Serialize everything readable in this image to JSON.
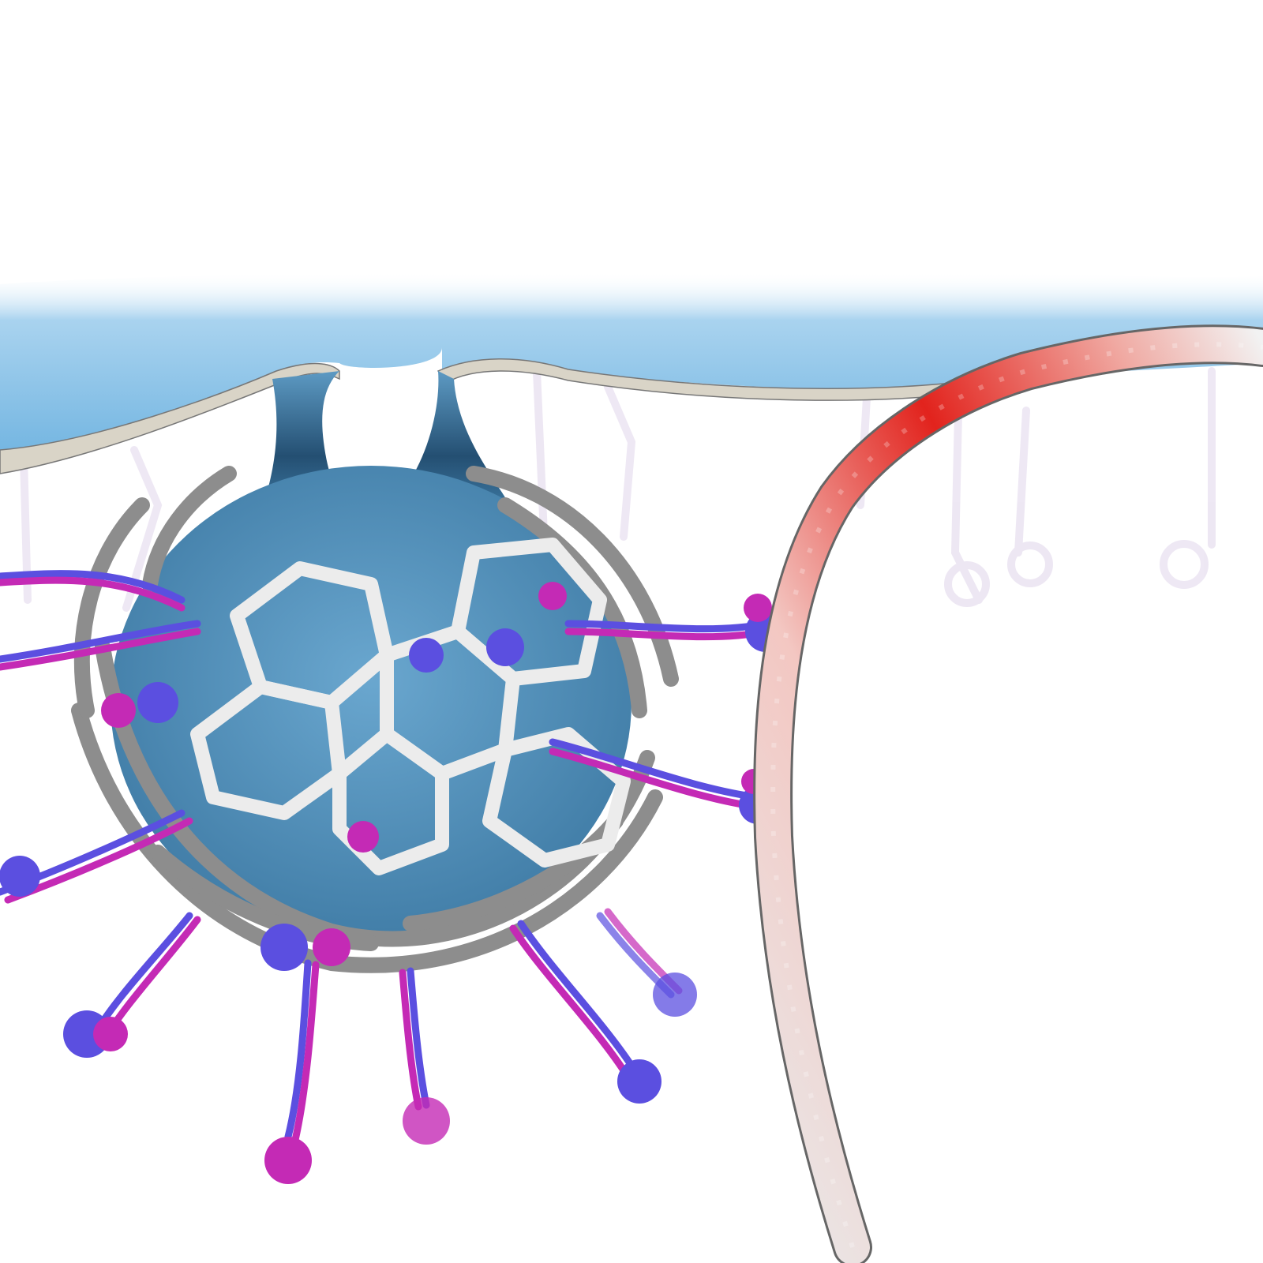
{
  "scene": {
    "colors": {
      "background": "#ffffff",
      "membrane": "#7cbbe3",
      "membrane_edge": "#5a9cc8",
      "bilayer": "#d8d3c8",
      "vesicle": "#4f8fb8",
      "clathrin_light": "#e9e9e9",
      "clathrin_dark": "#8a8a8a",
      "adaptor_blue": "#5b4fe0",
      "adaptor_magenta": "#c42ab5",
      "filament_red": "#e3241e",
      "filament_pink": "#f2b3ad",
      "filament_white": "#eeeeee"
    },
    "icons": [
      "membrane-sheet",
      "vesicle-neck",
      "clathrin-cage",
      "adaptor-protein",
      "actin-filament"
    ]
  }
}
